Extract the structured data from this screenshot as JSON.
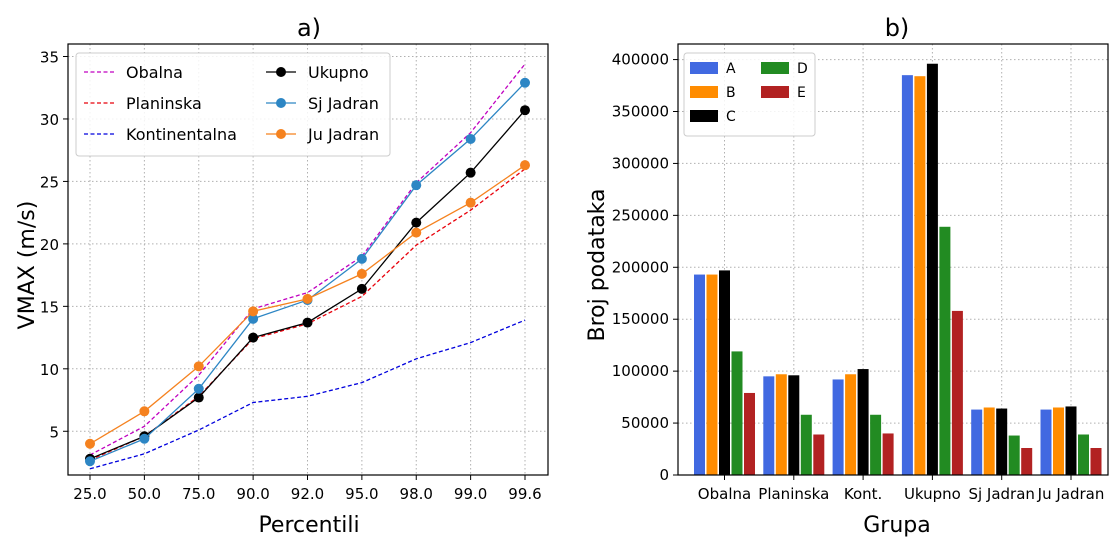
{
  "chart_data": [
    {
      "type": "line",
      "title": "a)",
      "xlabel": "Percentili",
      "ylabel": "VMAX (m/s)",
      "categories": [
        "25.0",
        "50.0",
        "75.0",
        "90.0",
        "92.0",
        "95.0",
        "98.0",
        "99.0",
        "99.6"
      ],
      "ylim": [
        1.5,
        36
      ],
      "yticks": [
        5,
        10,
        15,
        20,
        25,
        30,
        35
      ],
      "grid": true,
      "legend_position": "top-left",
      "series": [
        {
          "name": "Obalna",
          "color": "#c000c0",
          "style": "dashed",
          "marker": false,
          "values": [
            3.1,
            5.4,
            9.5,
            14.8,
            16.1,
            19.0,
            24.9,
            28.9,
            34.4
          ]
        },
        {
          "name": "Planinska",
          "color": "#e8000b",
          "style": "dashed",
          "marker": false,
          "values": [
            2.7,
            4.6,
            7.8,
            12.4,
            13.6,
            15.8,
            19.9,
            22.7,
            26.0
          ]
        },
        {
          "name": "Kontinentalna",
          "color": "#0000dd",
          "style": "dashed",
          "marker": false,
          "values": [
            2.0,
            3.2,
            5.1,
            7.3,
            7.8,
            8.9,
            10.8,
            12.1,
            13.9
          ]
        },
        {
          "name": "Ukupno",
          "color": "#000000",
          "style": "solid",
          "marker": true,
          "values": [
            2.8,
            4.6,
            7.7,
            12.5,
            13.7,
            16.4,
            21.7,
            25.7,
            30.7
          ]
        },
        {
          "name": "Sj Jadran",
          "color": "#2d86c4",
          "style": "solid",
          "marker": true,
          "values": [
            2.6,
            4.4,
            8.4,
            14.0,
            15.5,
            18.8,
            24.7,
            28.4,
            32.9
          ]
        },
        {
          "name": "Ju Jadran",
          "color": "#f5821f",
          "style": "solid",
          "marker": true,
          "values": [
            4.0,
            6.6,
            10.2,
            14.6,
            15.6,
            17.6,
            20.9,
            23.3,
            26.3
          ]
        }
      ]
    },
    {
      "type": "bar",
      "title": "b)",
      "xlabel": "Grupa",
      "ylabel": "Broj podataka",
      "categories": [
        "Obalna",
        "Planinska",
        "Kont.",
        "Ukupno",
        "Sj Jadran",
        "Ju Jadran"
      ],
      "ylim": [
        0,
        415000
      ],
      "yticks": [
        0,
        50000,
        100000,
        150000,
        200000,
        250000,
        300000,
        350000,
        400000
      ],
      "grid": true,
      "legend_position": "top-left",
      "series": [
        {
          "name": "A",
          "color": "#4169e1",
          "values": [
            193000,
            95000,
            92000,
            385000,
            63000,
            63000
          ]
        },
        {
          "name": "B",
          "color": "#ff8c00",
          "values": [
            193000,
            97000,
            97000,
            384000,
            65000,
            65000
          ]
        },
        {
          "name": "C",
          "color": "#000000",
          "values": [
            197000,
            96000,
            102000,
            396000,
            64000,
            66000
          ]
        },
        {
          "name": "D",
          "color": "#228b22",
          "values": [
            119000,
            58000,
            58000,
            239000,
            38000,
            39000
          ]
        },
        {
          "name": "E",
          "color": "#b22222",
          "values": [
            79000,
            39000,
            40000,
            158000,
            26000,
            26000
          ]
        }
      ]
    }
  ]
}
